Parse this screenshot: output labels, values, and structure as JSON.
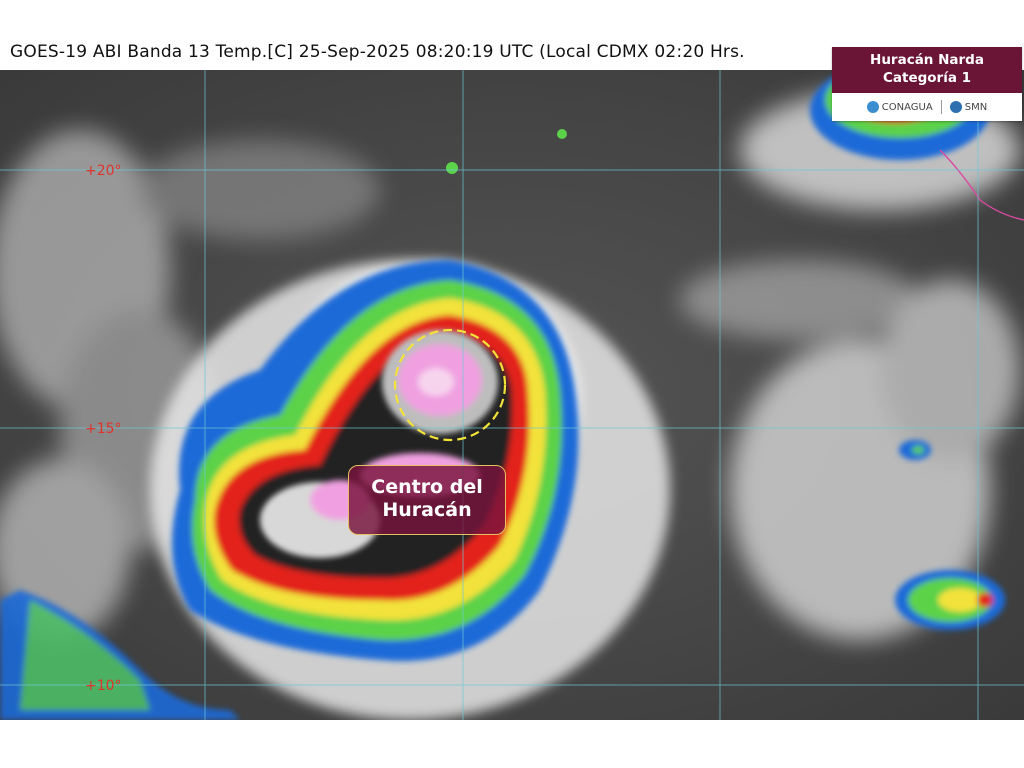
{
  "header": {
    "title": "GOES-19 ABI Banda 13 Temp.[C] 25-Sep-2025 08:20:19 UTC (Local CDMX  02:20 Hrs."
  },
  "map": {
    "lat_labels": [
      "+20°",
      "+15°",
      "+10°"
    ]
  },
  "badge": {
    "line1": "Huracán Narda",
    "line2": "Categoría 1",
    "logo1": "CONAGUA",
    "logo2": "SMN",
    "accent": "#6b1536"
  },
  "annotation": {
    "line1": "Centro del",
    "line2": "Huracán"
  },
  "colors": {
    "eye_circle": "#f2e23a",
    "grid": "#6ec7d6",
    "coastline": "#d84aa0"
  }
}
